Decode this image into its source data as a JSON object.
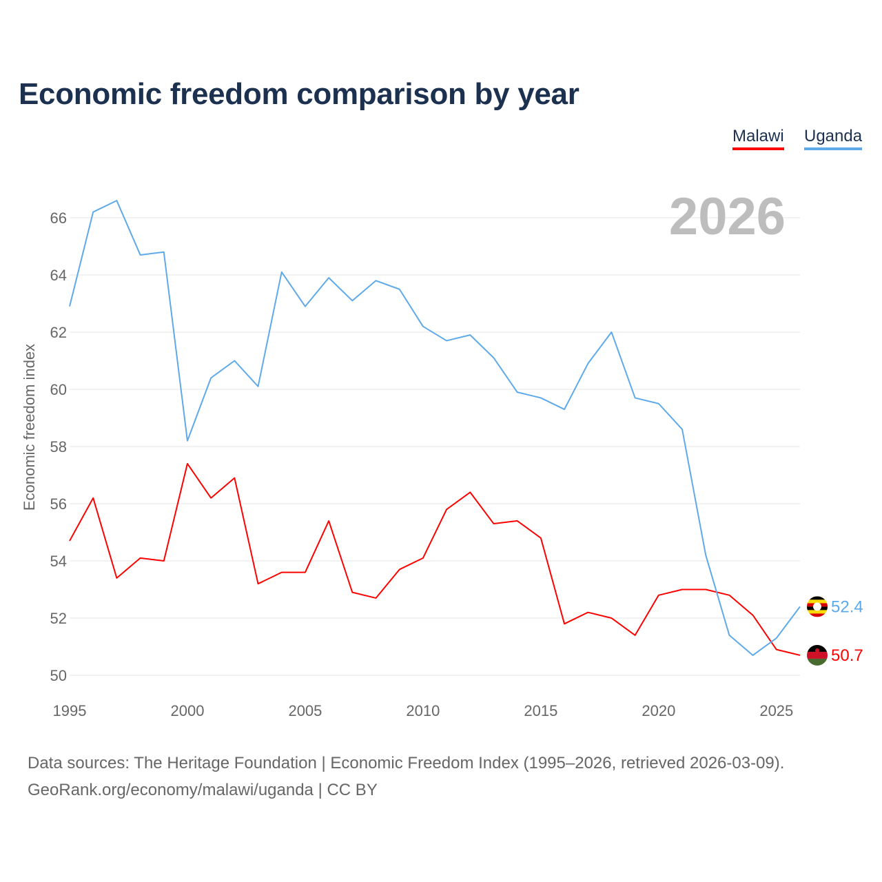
{
  "title": "Economic freedom comparison by year",
  "footer": {
    "line1": "Data sources: The Heritage Foundation | Economic Freedom Index (1995–2026, retrieved 2026-03-09).",
    "line2": "GeoRank.org/economy/malawi/uganda | CC BY"
  },
  "chart_data": {
    "type": "line",
    "title": "Economic freedom comparison by year",
    "watermark_year": "2026",
    "xlabel": "",
    "ylabel": "Economic freedom index",
    "xlim": [
      1995,
      2026
    ],
    "ylim": [
      50,
      66
    ],
    "grid": true,
    "legend_position": "top-right",
    "x_ticks": [
      "1995",
      "2000",
      "2005",
      "2010",
      "2015",
      "2020",
      "2025"
    ],
    "y_ticks": [
      "50",
      "52",
      "54",
      "56",
      "58",
      "60",
      "62",
      "64",
      "66"
    ],
    "x": [
      1995,
      1996,
      1997,
      1998,
      1999,
      2000,
      2001,
      2002,
      2003,
      2004,
      2005,
      2006,
      2007,
      2008,
      2009,
      2010,
      2011,
      2012,
      2013,
      2014,
      2015,
      2016,
      2017,
      2018,
      2019,
      2020,
      2021,
      2022,
      2023,
      2024,
      2025,
      2026
    ],
    "series": [
      {
        "name": "Malawi",
        "color": "#ff0000",
        "end_label": "50.7",
        "flag": "malawi-flag",
        "values": [
          54.7,
          56.2,
          53.4,
          54.1,
          54.0,
          57.4,
          56.2,
          56.9,
          53.2,
          53.6,
          53.6,
          55.4,
          52.9,
          52.7,
          53.7,
          54.1,
          55.8,
          56.4,
          55.3,
          55.4,
          54.8,
          51.8,
          52.2,
          52.0,
          51.4,
          52.8,
          53.0,
          53.0,
          52.8,
          52.1,
          50.9,
          50.7
        ]
      },
      {
        "name": "Uganda",
        "color": "#5ea9ea",
        "end_label": "52.4",
        "flag": "uganda-flag",
        "values": [
          62.9,
          66.2,
          66.6,
          64.7,
          64.8,
          58.2,
          60.4,
          61.0,
          60.1,
          64.1,
          62.9,
          63.9,
          63.1,
          63.8,
          63.5,
          62.2,
          61.7,
          61.9,
          61.1,
          59.9,
          59.7,
          59.3,
          60.9,
          62.0,
          59.7,
          59.5,
          58.6,
          54.2,
          51.4,
          50.7,
          51.3,
          52.4
        ]
      }
    ]
  }
}
